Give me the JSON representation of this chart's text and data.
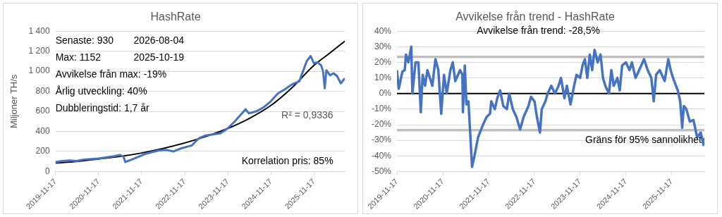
{
  "chart_data": [
    {
      "type": "line",
      "title": "HashRate",
      "ylabel": "Miljoner TH/s",
      "xlim": [
        "2019-11-17",
        "2026-08-04"
      ],
      "xticks": [
        "2019-11-17",
        "2020-11-17",
        "2021-11-17",
        "2022-11-17",
        "2023-11-17",
        "2024-11-17",
        "2025-11-17"
      ],
      "ylim": [
        0,
        1400
      ],
      "yticks": [
        0,
        200,
        400,
        600,
        800,
        {
          "value": 1000,
          "label": "1 000"
        },
        {
          "value": 1200,
          "label": "1 200"
        },
        {
          "value": 1400,
          "label": "1 400"
        }
      ],
      "grid": "y",
      "legend": false,
      "marker": "none",
      "line_style": "solid",
      "x": [
        "2019-11-17",
        "2020-01-15",
        "2020-03-15",
        "2020-05-15",
        "2020-07-15",
        "2020-09-15",
        "2020-11-15",
        "2021-01-15",
        "2021-03-15",
        "2021-05-15",
        "2021-06-15",
        "2021-07-01",
        "2021-08-15",
        "2021-10-15",
        "2021-12-15",
        "2022-02-15",
        "2022-04-15",
        "2022-06-15",
        "2022-08-15",
        "2022-10-15",
        "2022-12-15",
        "2023-01-15",
        "2023-03-15",
        "2023-05-15",
        "2023-07-15",
        "2023-09-15",
        "2023-11-15",
        "2024-01-15",
        "2024-03-15",
        "2024-04-15",
        "2024-05-15",
        "2024-07-15",
        "2024-09-15",
        "2024-11-15",
        "2025-01-15",
        "2025-03-15",
        "2025-05-15",
        "2025-07-15",
        "2025-08-15",
        "2025-09-15",
        "2025-10-19",
        "2025-11-15",
        "2025-12-15",
        "2026-01-15",
        "2026-02-01",
        "2026-02-15",
        "2026-03-01",
        "2026-04-01",
        "2026-05-01",
        "2026-06-01",
        "2026-07-01",
        "2026-08-04"
      ],
      "series": [
        {
          "color": "#4472c4",
          "values": [
            95,
            105,
            110,
            105,
            120,
            125,
            130,
            140,
            150,
            165,
            150,
            95,
            115,
            145,
            175,
            195,
            210,
            215,
            200,
            230,
            250,
            260,
            330,
            360,
            370,
            380,
            430,
            500,
            580,
            620,
            580,
            600,
            640,
            700,
            780,
            820,
            870,
            900,
            1000,
            1100,
            1152,
            1080,
            1090,
            1060,
            1000,
            830,
            1010,
            960,
            980,
            950,
            880,
            930
          ]
        },
        {
          "type": "line",
          "color": "#000000",
          "x": [
            "2019-11-17",
            "2020-05-17",
            "2020-11-17",
            "2021-05-17",
            "2021-11-17",
            "2022-05-17",
            "2022-11-17",
            "2023-05-17",
            "2023-11-17",
            "2024-05-17",
            "2024-11-17",
            "2025-05-17",
            "2025-11-17",
            "2026-03-17",
            "2026-08-04"
          ],
          "values": [
            85,
            100,
            125,
            150,
            185,
            230,
            285,
            350,
            430,
            530,
            660,
            840,
            1060,
            1170,
            1300
          ]
        }
      ],
      "annotations": [
        "Senaste: 930",
        "2026-08-04",
        "Max: 1152",
        "2025-10-19",
        "Avvikelse från max: -19%",
        "Årlig utveckling: 40%",
        "Dubbleringstid: 1,7 år",
        "R² = 0,9336",
        "Korrelation pris: 85%"
      ]
    },
    {
      "type": "line",
      "title": "Avvikelse från trend - HashRate",
      "xlim": [
        "2019-11-17",
        "2026-08-04"
      ],
      "xticks": [
        "2019-11-17",
        "2020-11-17",
        "2021-11-17",
        "2022-11-17",
        "2023-11-17",
        "2024-11-17",
        "2025-11-17"
      ],
      "ylim": [
        -50,
        40
      ],
      "yticks": [
        {
          "value": -50,
          "label": "-50%"
        },
        {
          "value": -40,
          "label": "-40%"
        },
        {
          "value": -30,
          "label": "-30%"
        },
        {
          "value": -20,
          "label": "-20%"
        },
        {
          "value": -10,
          "label": "-10%"
        },
        {
          "value": 0,
          "label": "0%"
        },
        {
          "value": 10,
          "label": "10%"
        },
        {
          "value": 20,
          "label": "20%"
        },
        {
          "value": 30,
          "label": "30%"
        },
        {
          "value": 40,
          "label": "40%"
        }
      ],
      "grid": "y",
      "legend": false,
      "marker": "none",
      "line_style": "solid",
      "x": [
        "2019-11-17",
        "2019-12-01",
        "2019-12-30",
        "2020-01-18",
        "2020-01-28",
        "2020-02-16",
        "2020-03-10",
        "2020-03-19",
        "2020-04-13",
        "2020-05-06",
        "2020-05-25",
        "2020-06-09",
        "2020-06-28",
        "2020-07-17",
        "2020-08-25",
        "2020-09-19",
        "2020-10-12",
        "2020-11-04",
        "2020-11-26",
        "2020-12-18",
        "2021-01-16",
        "2021-02-04",
        "2021-02-24",
        "2021-04-03",
        "2021-04-22",
        "2021-04-26",
        "2021-05-11",
        "2021-05-24",
        "2021-06-09",
        "2021-07-08",
        "2021-07-27",
        "2021-08-25",
        "2021-10-03",
        "2021-11-01",
        "2021-11-28",
        "2021-12-08",
        "2022-01-06",
        "2022-01-25",
        "2022-02-17",
        "2022-03-14",
        "2022-04-12",
        "2022-04-30",
        "2022-05-29",
        "2022-06-27",
        "2022-07-26",
        "2022-08-23",
        "2022-10-01",
        "2022-10-21",
        "2022-11-18",
        "2022-12-07",
        "2023-01-01",
        "2023-01-15",
        "2023-02-13",
        "2023-03-03",
        "2023-04-01",
        "2023-04-30",
        "2023-05-29",
        "2023-06-17",
        "2023-07-15",
        "2023-08-03",
        "2023-09-01",
        "2023-09-30",
        "2023-10-19",
        "2023-11-17",
        "2023-12-06",
        "2023-12-25",
        "2024-01-13",
        "2024-02-02",
        "2024-02-21",
        "2024-03-11",
        "2024-04-05",
        "2024-04-28",
        "2024-05-17",
        "2024-06-05",
        "2024-07-04",
        "2024-07-23",
        "2024-08-11",
        "2024-09-09",
        "2024-09-28",
        "2024-10-17",
        "2024-11-16",
        "2024-12-15",
        "2025-01-03",
        "2025-02-01",
        "2025-03-02",
        "2025-04-10",
        "2025-05-09",
        "2025-06-07",
        "2025-06-26",
        "2025-07-15",
        "2025-08-13",
        "2025-09-21",
        "2025-10-20",
        "2025-11-08",
        "2025-11-27",
        "2026-01-04",
        "2026-01-23",
        "2026-02-08",
        "2026-02-21",
        "2026-03-13",
        "2026-04-10",
        "2026-05-09",
        "2026-06-07",
        "2026-07-06",
        "2026-07-28",
        "2026-08-04"
      ],
      "series": [
        {
          "color": "#4472c4",
          "values": [
            15,
            3,
            14,
            15,
            25,
            20,
            30,
            0,
            20,
            20,
            -12,
            12,
            5,
            15,
            5,
            22,
            15,
            -13,
            12,
            0,
            15,
            20,
            8,
            15,
            12,
            -12,
            18,
            -7,
            -5,
            -47,
            -40,
            -28,
            -20,
            -15,
            -13,
            -5,
            -10,
            -3,
            2,
            -8,
            -10,
            0,
            -10,
            -15,
            -23,
            -15,
            -8,
            -2,
            -5,
            -15,
            -25,
            -10,
            -5,
            0,
            5,
            0,
            5,
            10,
            -3,
            5,
            -7,
            5,
            12,
            10,
            18,
            22,
            10,
            25,
            15,
            28,
            20,
            25,
            10,
            5,
            0,
            15,
            5,
            10,
            2,
            18,
            20,
            15,
            20,
            10,
            15,
            22,
            15,
            10,
            -5,
            12,
            15,
            8,
            22,
            15,
            10,
            2,
            -5,
            -22,
            -8,
            -10,
            -18,
            -17,
            -28,
            -25,
            -33,
            -28.5
          ]
        }
      ],
      "ref_lines": [
        {
          "axis": "y",
          "value": 0,
          "color": "#000000"
        },
        {
          "axis": "y",
          "value": 23.5,
          "color": "#bfbfbf"
        },
        {
          "axis": "y",
          "value": -23.5,
          "color": "#bfbfbf",
          "label": "Gräns för 95% sannolikhet"
        }
      ],
      "annotations": [
        "Avvikelse från trend: -28,5%"
      ]
    }
  ]
}
